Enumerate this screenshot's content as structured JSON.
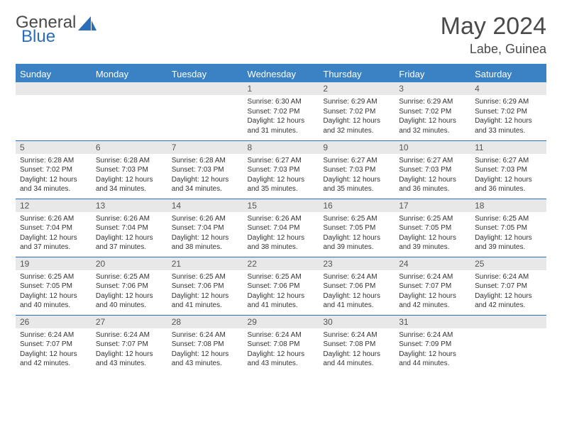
{
  "brand": {
    "part1": "General",
    "part2": "Blue"
  },
  "title": "May 2024",
  "location": "Labe, Guinea",
  "colors": {
    "header_bar": "#3b82c4",
    "daynum_bg": "#e8e8e8",
    "row_border": "#2a6db8",
    "text": "#333333",
    "title_text": "#4a4a4a"
  },
  "typography": {
    "title_fontsize": 34,
    "location_fontsize": 18,
    "weekday_fontsize": 13,
    "daynum_fontsize": 12,
    "body_fontsize": 10
  },
  "weekdays": [
    "Sunday",
    "Monday",
    "Tuesday",
    "Wednesday",
    "Thursday",
    "Friday",
    "Saturday"
  ],
  "weeks": [
    [
      null,
      null,
      null,
      {
        "n": "1",
        "sr": "Sunrise: 6:30 AM",
        "ss": "Sunset: 7:02 PM",
        "d1": "Daylight: 12 hours",
        "d2": "and 31 minutes."
      },
      {
        "n": "2",
        "sr": "Sunrise: 6:29 AM",
        "ss": "Sunset: 7:02 PM",
        "d1": "Daylight: 12 hours",
        "d2": "and 32 minutes."
      },
      {
        "n": "3",
        "sr": "Sunrise: 6:29 AM",
        "ss": "Sunset: 7:02 PM",
        "d1": "Daylight: 12 hours",
        "d2": "and 32 minutes."
      },
      {
        "n": "4",
        "sr": "Sunrise: 6:29 AM",
        "ss": "Sunset: 7:02 PM",
        "d1": "Daylight: 12 hours",
        "d2": "and 33 minutes."
      }
    ],
    [
      {
        "n": "5",
        "sr": "Sunrise: 6:28 AM",
        "ss": "Sunset: 7:02 PM",
        "d1": "Daylight: 12 hours",
        "d2": "and 34 minutes."
      },
      {
        "n": "6",
        "sr": "Sunrise: 6:28 AM",
        "ss": "Sunset: 7:03 PM",
        "d1": "Daylight: 12 hours",
        "d2": "and 34 minutes."
      },
      {
        "n": "7",
        "sr": "Sunrise: 6:28 AM",
        "ss": "Sunset: 7:03 PM",
        "d1": "Daylight: 12 hours",
        "d2": "and 34 minutes."
      },
      {
        "n": "8",
        "sr": "Sunrise: 6:27 AM",
        "ss": "Sunset: 7:03 PM",
        "d1": "Daylight: 12 hours",
        "d2": "and 35 minutes."
      },
      {
        "n": "9",
        "sr": "Sunrise: 6:27 AM",
        "ss": "Sunset: 7:03 PM",
        "d1": "Daylight: 12 hours",
        "d2": "and 35 minutes."
      },
      {
        "n": "10",
        "sr": "Sunrise: 6:27 AM",
        "ss": "Sunset: 7:03 PM",
        "d1": "Daylight: 12 hours",
        "d2": "and 36 minutes."
      },
      {
        "n": "11",
        "sr": "Sunrise: 6:27 AM",
        "ss": "Sunset: 7:03 PM",
        "d1": "Daylight: 12 hours",
        "d2": "and 36 minutes."
      }
    ],
    [
      {
        "n": "12",
        "sr": "Sunrise: 6:26 AM",
        "ss": "Sunset: 7:04 PM",
        "d1": "Daylight: 12 hours",
        "d2": "and 37 minutes."
      },
      {
        "n": "13",
        "sr": "Sunrise: 6:26 AM",
        "ss": "Sunset: 7:04 PM",
        "d1": "Daylight: 12 hours",
        "d2": "and 37 minutes."
      },
      {
        "n": "14",
        "sr": "Sunrise: 6:26 AM",
        "ss": "Sunset: 7:04 PM",
        "d1": "Daylight: 12 hours",
        "d2": "and 38 minutes."
      },
      {
        "n": "15",
        "sr": "Sunrise: 6:26 AM",
        "ss": "Sunset: 7:04 PM",
        "d1": "Daylight: 12 hours",
        "d2": "and 38 minutes."
      },
      {
        "n": "16",
        "sr": "Sunrise: 6:25 AM",
        "ss": "Sunset: 7:05 PM",
        "d1": "Daylight: 12 hours",
        "d2": "and 39 minutes."
      },
      {
        "n": "17",
        "sr": "Sunrise: 6:25 AM",
        "ss": "Sunset: 7:05 PM",
        "d1": "Daylight: 12 hours",
        "d2": "and 39 minutes."
      },
      {
        "n": "18",
        "sr": "Sunrise: 6:25 AM",
        "ss": "Sunset: 7:05 PM",
        "d1": "Daylight: 12 hours",
        "d2": "and 39 minutes."
      }
    ],
    [
      {
        "n": "19",
        "sr": "Sunrise: 6:25 AM",
        "ss": "Sunset: 7:05 PM",
        "d1": "Daylight: 12 hours",
        "d2": "and 40 minutes."
      },
      {
        "n": "20",
        "sr": "Sunrise: 6:25 AM",
        "ss": "Sunset: 7:06 PM",
        "d1": "Daylight: 12 hours",
        "d2": "and 40 minutes."
      },
      {
        "n": "21",
        "sr": "Sunrise: 6:25 AM",
        "ss": "Sunset: 7:06 PM",
        "d1": "Daylight: 12 hours",
        "d2": "and 41 minutes."
      },
      {
        "n": "22",
        "sr": "Sunrise: 6:25 AM",
        "ss": "Sunset: 7:06 PM",
        "d1": "Daylight: 12 hours",
        "d2": "and 41 minutes."
      },
      {
        "n": "23",
        "sr": "Sunrise: 6:24 AM",
        "ss": "Sunset: 7:06 PM",
        "d1": "Daylight: 12 hours",
        "d2": "and 41 minutes."
      },
      {
        "n": "24",
        "sr": "Sunrise: 6:24 AM",
        "ss": "Sunset: 7:07 PM",
        "d1": "Daylight: 12 hours",
        "d2": "and 42 minutes."
      },
      {
        "n": "25",
        "sr": "Sunrise: 6:24 AM",
        "ss": "Sunset: 7:07 PM",
        "d1": "Daylight: 12 hours",
        "d2": "and 42 minutes."
      }
    ],
    [
      {
        "n": "26",
        "sr": "Sunrise: 6:24 AM",
        "ss": "Sunset: 7:07 PM",
        "d1": "Daylight: 12 hours",
        "d2": "and 42 minutes."
      },
      {
        "n": "27",
        "sr": "Sunrise: 6:24 AM",
        "ss": "Sunset: 7:07 PM",
        "d1": "Daylight: 12 hours",
        "d2": "and 43 minutes."
      },
      {
        "n": "28",
        "sr": "Sunrise: 6:24 AM",
        "ss": "Sunset: 7:08 PM",
        "d1": "Daylight: 12 hours",
        "d2": "and 43 minutes."
      },
      {
        "n": "29",
        "sr": "Sunrise: 6:24 AM",
        "ss": "Sunset: 7:08 PM",
        "d1": "Daylight: 12 hours",
        "d2": "and 43 minutes."
      },
      {
        "n": "30",
        "sr": "Sunrise: 6:24 AM",
        "ss": "Sunset: 7:08 PM",
        "d1": "Daylight: 12 hours",
        "d2": "and 44 minutes."
      },
      {
        "n": "31",
        "sr": "Sunrise: 6:24 AM",
        "ss": "Sunset: 7:09 PM",
        "d1": "Daylight: 12 hours",
        "d2": "and 44 minutes."
      },
      null
    ]
  ]
}
